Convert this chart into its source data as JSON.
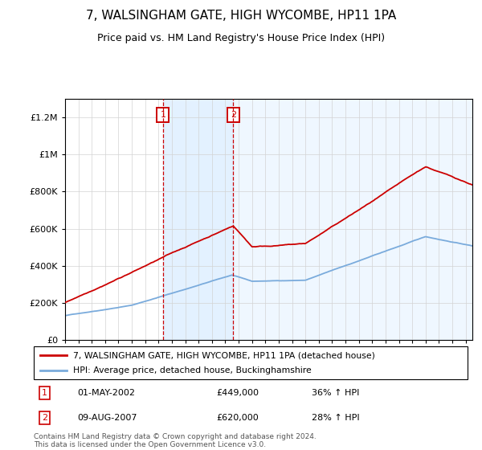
{
  "title": "7, WALSINGHAM GATE, HIGH WYCOMBE, HP11 1PA",
  "subtitle": "Price paid vs. HM Land Registry's House Price Index (HPI)",
  "legend_label_red": "7, WALSINGHAM GATE, HIGH WYCOMBE, HP11 1PA (detached house)",
  "legend_label_blue": "HPI: Average price, detached house, Buckinghamshire",
  "annotation1_date": "01-MAY-2002",
  "annotation1_price": "£449,000",
  "annotation1_hpi": "36% ↑ HPI",
  "annotation2_date": "09-AUG-2007",
  "annotation2_price": "£620,000",
  "annotation2_hpi": "28% ↑ HPI",
  "footer": "Contains HM Land Registry data © Crown copyright and database right 2024.\nThis data is licensed under the Open Government Licence v3.0.",
  "red_color": "#cc0000",
  "blue_color": "#7aabdc",
  "shade_color": "#ddeeff",
  "annotation_box_color": "#cc0000",
  "ylim": [
    0,
    1300000
  ],
  "yticks": [
    0,
    200000,
    400000,
    600000,
    800000,
    1000000,
    1200000
  ],
  "ytick_labels": [
    "£0",
    "£200K",
    "£400K",
    "£600K",
    "£800K",
    "£1M",
    "£1.2M"
  ],
  "sale1_year": 2002.33,
  "sale1_price": 449000,
  "sale2_year": 2007.6,
  "sale2_price": 620000,
  "xmin": 1995,
  "xmax": 2025.5
}
